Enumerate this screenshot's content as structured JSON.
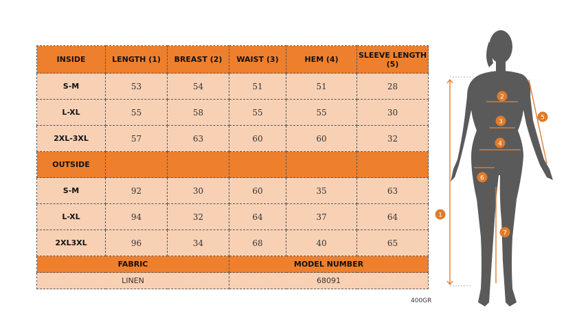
{
  "inside_header": {
    "section": "INSIDE",
    "columns": [
      "LENGTH (1)",
      "BREAST (2)",
      "WAIST (3)",
      "HEM (4)",
      "SLEEVE LENGTH (5)"
    ]
  },
  "inside_rows": [
    {
      "size": "S-M",
      "values": [
        "53",
        "54",
        "51",
        "51",
        "28"
      ]
    },
    {
      "size": "L-XL",
      "values": [
        "55",
        "58",
        "55",
        "55",
        "30"
      ]
    },
    {
      "size": "2XL-3XL",
      "values": [
        "57",
        "63",
        "60",
        "60",
        "32"
      ]
    }
  ],
  "outside_header": {
    "section": "OUTSIDE"
  },
  "outside_rows": [
    {
      "size": "S-M",
      "values": [
        "92",
        "30",
        "60",
        "35",
        "63"
      ]
    },
    {
      "size": "L-XL",
      "values": [
        "94",
        "32",
        "64",
        "37",
        "64"
      ]
    },
    {
      "size": "2XL3XL",
      "values": [
        "96",
        "34",
        "68",
        "40",
        "65"
      ]
    }
  ],
  "fabric": {
    "label": "FABRIC",
    "value": "LINEN"
  },
  "model_number": {
    "label": "MODEL NUMBER",
    "value": "68091"
  },
  "weight_note": "400GR",
  "figure_markers": [
    "1",
    "2",
    "3",
    "4",
    "5",
    "6",
    "7"
  ],
  "colors": {
    "accent": "#ee7f2d",
    "cell": "#f8d1b5",
    "silhouette": "#5a5a5a",
    "marker": "#e07b2a"
  }
}
